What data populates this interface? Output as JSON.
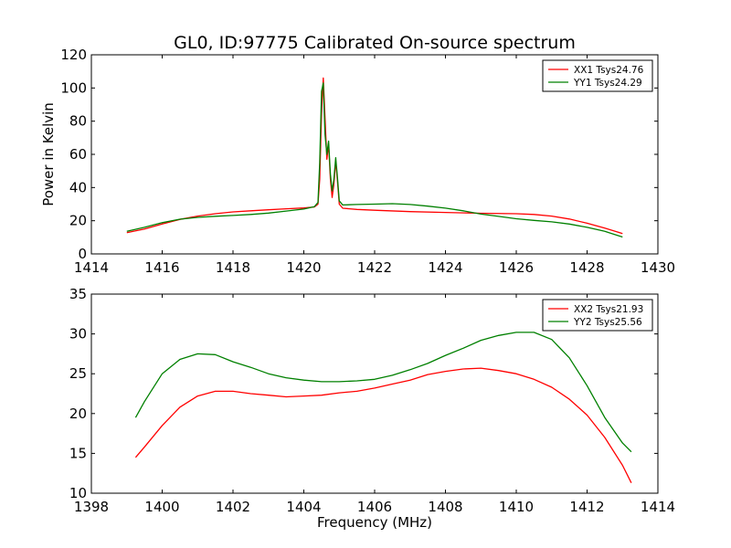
{
  "figure": {
    "title": "GL0, ID:97775 Calibrated On-source spectrum",
    "colors": {
      "xx": "#ff0000",
      "yy": "#008000"
    }
  },
  "chart_data": [
    {
      "type": "line",
      "title": "GL0, ID:97775 Calibrated On-source spectrum",
      "xlabel": "",
      "ylabel": "Power in Kelvin",
      "xlim": [
        1414,
        1430
      ],
      "ylim": [
        0,
        120
      ],
      "xticks": [
        1414,
        1416,
        1418,
        1420,
        1422,
        1424,
        1426,
        1428,
        1430
      ],
      "yticks": [
        0,
        20,
        40,
        60,
        80,
        100,
        120
      ],
      "legend": "top-right",
      "grid": false,
      "series": [
        {
          "name": "XX1 Tsys24.76",
          "color": "#ff0000",
          "points": [
            [
              1415.0,
              12.8
            ],
            [
              1415.5,
              15.0
            ],
            [
              1416.0,
              18.0
            ],
            [
              1416.5,
              20.8
            ],
            [
              1417.0,
              22.8
            ],
            [
              1417.5,
              24.2
            ],
            [
              1418.0,
              25.3
            ],
            [
              1418.5,
              26.0
            ],
            [
              1419.0,
              26.6
            ],
            [
              1419.5,
              27.2
            ],
            [
              1420.0,
              27.7
            ],
            [
              1420.3,
              28.3
            ],
            [
              1420.4,
              30.0
            ],
            [
              1420.45,
              45.0
            ],
            [
              1420.5,
              85.0
            ],
            [
              1420.55,
              106.0
            ],
            [
              1420.6,
              82.0
            ],
            [
              1420.65,
              57.0
            ],
            [
              1420.7,
              66.0
            ],
            [
              1420.75,
              45.0
            ],
            [
              1420.8,
              34.0
            ],
            [
              1420.85,
              42.0
            ],
            [
              1420.9,
              56.0
            ],
            [
              1420.95,
              44.0
            ],
            [
              1421.0,
              30.0
            ],
            [
              1421.1,
              27.5
            ],
            [
              1421.5,
              26.8
            ],
            [
              1422.0,
              26.3
            ],
            [
              1423.0,
              25.5
            ],
            [
              1424.0,
              25.0
            ],
            [
              1425.0,
              24.5
            ],
            [
              1426.0,
              24.2
            ],
            [
              1426.5,
              23.8
            ],
            [
              1427.0,
              22.8
            ],
            [
              1427.5,
              21.0
            ],
            [
              1428.0,
              18.5
            ],
            [
              1428.5,
              15.5
            ],
            [
              1429.0,
              12.3
            ]
          ]
        },
        {
          "name": "YY1 Tsys24.29",
          "color": "#008000",
          "points": [
            [
              1415.0,
              13.6
            ],
            [
              1415.5,
              16.0
            ],
            [
              1416.0,
              18.8
            ],
            [
              1416.5,
              20.9
            ],
            [
              1417.0,
              22.0
            ],
            [
              1417.5,
              22.7
            ],
            [
              1418.0,
              23.2
            ],
            [
              1418.5,
              23.8
            ],
            [
              1419.0,
              24.6
            ],
            [
              1419.5,
              25.8
            ],
            [
              1420.0,
              27.0
            ],
            [
              1420.3,
              28.5
            ],
            [
              1420.4,
              31.0
            ],
            [
              1420.45,
              55.0
            ],
            [
              1420.5,
              98.0
            ],
            [
              1420.55,
              103.0
            ],
            [
              1420.6,
              72.0
            ],
            [
              1420.65,
              60.0
            ],
            [
              1420.7,
              68.0
            ],
            [
              1420.75,
              48.0
            ],
            [
              1420.8,
              38.0
            ],
            [
              1420.85,
              45.0
            ],
            [
              1420.9,
              58.0
            ],
            [
              1420.95,
              46.0
            ],
            [
              1421.0,
              32.0
            ],
            [
              1421.1,
              29.5
            ],
            [
              1421.5,
              29.8
            ],
            [
              1422.0,
              30.0
            ],
            [
              1422.5,
              30.3
            ],
            [
              1423.0,
              29.8
            ],
            [
              1423.5,
              28.8
            ],
            [
              1424.0,
              27.6
            ],
            [
              1424.5,
              26.0
            ],
            [
              1425.0,
              24.0
            ],
            [
              1425.5,
              22.6
            ],
            [
              1426.0,
              21.2
            ],
            [
              1426.5,
              20.2
            ],
            [
              1427.0,
              19.3
            ],
            [
              1427.5,
              18.0
            ],
            [
              1428.0,
              16.0
            ],
            [
              1428.5,
              13.6
            ],
            [
              1429.0,
              10.2
            ]
          ]
        }
      ]
    },
    {
      "type": "line",
      "title": "",
      "xlabel": "Frequency (MHz)",
      "ylabel": "",
      "xlim": [
        1398,
        1414
      ],
      "ylim": [
        10,
        35
      ],
      "xticks": [
        1398,
        1400,
        1402,
        1404,
        1406,
        1408,
        1410,
        1412,
        1414
      ],
      "yticks": [
        10,
        15,
        20,
        25,
        30,
        35
      ],
      "legend": "top-right",
      "grid": false,
      "series": [
        {
          "name": "XX2 Tsys21.93",
          "color": "#ff0000",
          "points": [
            [
              1399.25,
              14.5
            ],
            [
              1399.5,
              15.8
            ],
            [
              1400.0,
              18.5
            ],
            [
              1400.5,
              20.8
            ],
            [
              1401.0,
              22.2
            ],
            [
              1401.5,
              22.8
            ],
            [
              1402.0,
              22.8
            ],
            [
              1402.5,
              22.5
            ],
            [
              1403.0,
              22.3
            ],
            [
              1403.5,
              22.1
            ],
            [
              1404.0,
              22.2
            ],
            [
              1404.5,
              22.3
            ],
            [
              1405.0,
              22.6
            ],
            [
              1405.5,
              22.8
            ],
            [
              1406.0,
              23.2
            ],
            [
              1406.5,
              23.7
            ],
            [
              1407.0,
              24.2
            ],
            [
              1407.5,
              24.9
            ],
            [
              1408.0,
              25.3
            ],
            [
              1408.5,
              25.6
            ],
            [
              1409.0,
              25.7
            ],
            [
              1409.5,
              25.4
            ],
            [
              1410.0,
              25.0
            ],
            [
              1410.5,
              24.3
            ],
            [
              1411.0,
              23.3
            ],
            [
              1411.5,
              21.8
            ],
            [
              1412.0,
              19.8
            ],
            [
              1412.5,
              17.0
            ],
            [
              1413.0,
              13.5
            ],
            [
              1413.25,
              11.3
            ]
          ]
        },
        {
          "name": "YY2 Tsys25.56",
          "color": "#008000",
          "points": [
            [
              1399.25,
              19.5
            ],
            [
              1399.5,
              21.5
            ],
            [
              1400.0,
              25.0
            ],
            [
              1400.5,
              26.8
            ],
            [
              1401.0,
              27.5
            ],
            [
              1401.5,
              27.4
            ],
            [
              1402.0,
              26.5
            ],
            [
              1402.5,
              25.8
            ],
            [
              1403.0,
              25.0
            ],
            [
              1403.5,
              24.5
            ],
            [
              1404.0,
              24.2
            ],
            [
              1404.5,
              24.0
            ],
            [
              1405.0,
              24.0
            ],
            [
              1405.5,
              24.1
            ],
            [
              1406.0,
              24.3
            ],
            [
              1406.5,
              24.8
            ],
            [
              1407.0,
              25.5
            ],
            [
              1407.5,
              26.3
            ],
            [
              1408.0,
              27.3
            ],
            [
              1408.5,
              28.2
            ],
            [
              1409.0,
              29.2
            ],
            [
              1409.5,
              29.8
            ],
            [
              1410.0,
              30.2
            ],
            [
              1410.5,
              30.2
            ],
            [
              1411.0,
              29.3
            ],
            [
              1411.5,
              27.0
            ],
            [
              1412.0,
              23.5
            ],
            [
              1412.5,
              19.5
            ],
            [
              1413.0,
              16.3
            ],
            [
              1413.25,
              15.2
            ]
          ]
        }
      ]
    }
  ]
}
